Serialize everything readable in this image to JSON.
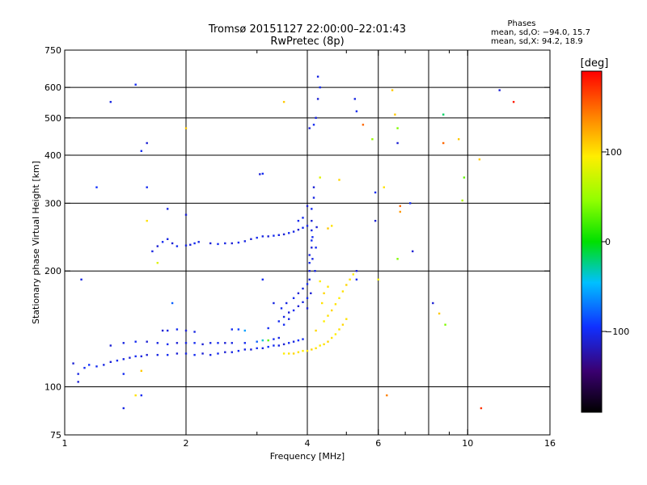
{
  "header": {
    "title": "Tromsø 20151127 22:00:00–22:01:43",
    "subtitle": "RwPretec (8p)"
  },
  "phases": {
    "heading": "Phases",
    "o_line": "mean, sd,O: −94.0, 15.7",
    "x_line": "mean, sd,X:  94.2, 18.9"
  },
  "colorbar": {
    "unit": "[deg]",
    "ticks": [
      {
        "value": 100,
        "label": "100"
      },
      {
        "value": 0,
        "label": "0"
      },
      {
        "value": -100,
        "label": "−100"
      }
    ],
    "range": [
      -190,
      190
    ]
  },
  "chart_data": {
    "type": "scatter",
    "title": "Tromsø 20151127 22:00:00–22:01:43",
    "subtitle": "RwPretec (8p)",
    "xlabel": "Frequency [MHz]",
    "ylabel": "Stationary phase Virtual Height [km]",
    "x_scale": "log",
    "y_scale": "log",
    "xlim": [
      1,
      16
    ],
    "ylim": [
      75,
      750
    ],
    "x_ticks": [
      {
        "value": 1,
        "label": "1"
      },
      {
        "value": 2,
        "label": "2"
      },
      {
        "value": 4,
        "label": "4"
      },
      {
        "value": 6,
        "label": "6"
      },
      {
        "value": 10,
        "label": "10"
      },
      {
        "value": 16,
        "label": "16"
      }
    ],
    "x_minor_ticks": [
      3,
      5,
      7,
      8,
      9
    ],
    "x_grid": [
      2,
      4,
      6,
      8,
      10
    ],
    "y_ticks": [
      {
        "value": 75,
        "label": "75"
      },
      {
        "value": 100,
        "label": "100"
      },
      {
        "value": 200,
        "label": "200"
      },
      {
        "value": 300,
        "label": "300"
      },
      {
        "value": 400,
        "label": "400"
      },
      {
        "value": 500,
        "label": "500"
      },
      {
        "value": 600,
        "label": "600"
      },
      {
        "value": 750,
        "label": "750"
      }
    ],
    "y_grid": [
      100,
      200,
      300,
      400,
      500,
      600
    ],
    "grid": true,
    "color_scale": "phase in degrees",
    "series": [
      {
        "points": [
          [
            1.05,
            115,
            -110
          ],
          [
            1.08,
            108,
            -105
          ],
          [
            1.12,
            112,
            -100
          ],
          [
            1.15,
            114,
            -95
          ],
          [
            1.2,
            113,
            -100
          ],
          [
            1.25,
            114,
            -105
          ],
          [
            1.3,
            116,
            -110
          ],
          [
            1.35,
            117,
            -100
          ],
          [
            1.4,
            118,
            -105
          ],
          [
            1.45,
            119,
            -110
          ],
          [
            1.5,
            120,
            -100
          ],
          [
            1.55,
            120,
            -105
          ],
          [
            1.6,
            121,
            -110
          ],
          [
            1.7,
            121,
            -105
          ],
          [
            1.8,
            121,
            -100
          ],
          [
            1.9,
            122,
            -110
          ],
          [
            2.0,
            122,
            -105
          ],
          [
            2.1,
            121,
            -100
          ],
          [
            2.2,
            122,
            -110
          ],
          [
            2.3,
            121,
            -105
          ],
          [
            2.4,
            122,
            -100
          ],
          [
            2.5,
            123,
            -110
          ],
          [
            2.6,
            123,
            -105
          ],
          [
            2.7,
            124,
            -100
          ],
          [
            2.8,
            125,
            -105
          ],
          [
            2.9,
            125,
            -110
          ],
          [
            3.0,
            126,
            -100
          ],
          [
            3.1,
            126,
            -105
          ],
          [
            3.2,
            127,
            -95
          ],
          [
            3.3,
            128,
            -100
          ],
          [
            3.4,
            128,
            -105
          ],
          [
            3.5,
            129,
            -110
          ],
          [
            3.6,
            130,
            -100
          ],
          [
            3.7,
            131,
            -105
          ],
          [
            3.8,
            132,
            -95
          ],
          [
            3.9,
            133,
            -100
          ]
        ]
      },
      {
        "points": [
          [
            1.3,
            128,
            -110
          ],
          [
            1.4,
            130,
            -105
          ],
          [
            1.5,
            131,
            -100
          ],
          [
            1.6,
            131,
            -110
          ],
          [
            1.7,
            130,
            -105
          ],
          [
            1.8,
            129,
            -100
          ],
          [
            1.9,
            130,
            -110
          ],
          [
            2.0,
            130,
            -105
          ],
          [
            2.1,
            130,
            -100
          ],
          [
            2.2,
            129,
            -110
          ],
          [
            2.3,
            130,
            -105
          ],
          [
            2.4,
            130,
            -100
          ],
          [
            2.5,
            130,
            -110
          ],
          [
            2.6,
            130,
            -105
          ],
          [
            2.8,
            130,
            -100
          ],
          [
            3.0,
            131,
            -80
          ],
          [
            3.1,
            132,
            -40
          ],
          [
            3.2,
            132,
            30
          ],
          [
            3.3,
            133,
            -100
          ],
          [
            3.4,
            134,
            -105
          ]
        ]
      },
      {
        "points": [
          [
            1.75,
            140,
            -110
          ],
          [
            1.8,
            140,
            -105
          ],
          [
            1.9,
            141,
            -100
          ],
          [
            2.0,
            140,
            -110
          ],
          [
            2.1,
            139,
            -105
          ],
          [
            2.6,
            141,
            -100
          ],
          [
            2.7,
            141,
            -90
          ],
          [
            2.8,
            140,
            -60
          ],
          [
            3.2,
            142,
            -100
          ]
        ]
      },
      {
        "points": [
          [
            3.4,
            148,
            -100
          ],
          [
            3.5,
            152,
            -105
          ],
          [
            3.6,
            156,
            -110
          ],
          [
            3.5,
            145,
            -100
          ],
          [
            3.6,
            150,
            -105
          ],
          [
            3.7,
            158,
            -100
          ],
          [
            3.8,
            162,
            -110
          ],
          [
            3.9,
            166,
            -105
          ],
          [
            3.45,
            160,
            -100
          ],
          [
            3.55,
            165,
            -105
          ],
          [
            3.7,
            170,
            -100
          ],
          [
            3.8,
            175,
            -110
          ],
          [
            3.9,
            180,
            -105
          ],
          [
            4.0,
            185,
            -100
          ],
          [
            4.0,
            160,
            -110
          ],
          [
            4.0,
            170,
            -100
          ],
          [
            4.05,
            190,
            -105
          ],
          [
            4.05,
            200,
            -110
          ],
          [
            4.05,
            210,
            -100
          ],
          [
            4.05,
            220,
            -105
          ],
          [
            4.1,
            230,
            -110
          ],
          [
            4.1,
            240,
            -100
          ],
          [
            4.1,
            255,
            -105
          ],
          [
            4.1,
            270,
            -110
          ],
          [
            4.1,
            290,
            -100
          ],
          [
            4.15,
            310,
            -105
          ],
          [
            4.15,
            330,
            -110
          ],
          [
            4.12,
            215,
            -105
          ],
          [
            4.12,
            245,
            -100
          ],
          [
            4.08,
            175,
            -110
          ],
          [
            4.18,
            200,
            -105
          ],
          [
            4.2,
            230,
            -100
          ],
          [
            4.22,
            260,
            -110
          ],
          [
            4.05,
            470,
            -110
          ],
          [
            4.15,
            480,
            -100
          ],
          [
            4.2,
            500,
            -105
          ],
          [
            4.25,
            560,
            -110
          ],
          [
            4.3,
            600,
            -100
          ],
          [
            4.25,
            640,
            -105
          ]
        ]
      },
      {
        "points": [
          [
            1.65,
            225,
            -105
          ],
          [
            1.7,
            232,
            -110
          ],
          [
            1.75,
            238,
            -100
          ],
          [
            1.8,
            242,
            -105
          ],
          [
            1.85,
            236,
            -110
          ],
          [
            1.9,
            232,
            -100
          ],
          [
            2.0,
            233,
            -105
          ],
          [
            2.05,
            234,
            -110
          ],
          [
            2.1,
            236,
            -100
          ],
          [
            2.15,
            238,
            -105
          ],
          [
            2.3,
            236,
            -110
          ],
          [
            2.4,
            235,
            -100
          ],
          [
            2.5,
            236,
            -105
          ],
          [
            2.6,
            236,
            -110
          ],
          [
            2.7,
            237,
            -100
          ],
          [
            2.8,
            239,
            -105
          ],
          [
            2.9,
            242,
            -110
          ],
          [
            3.0,
            244,
            -100
          ],
          [
            3.1,
            246,
            -105
          ],
          [
            3.2,
            246,
            -110
          ],
          [
            3.3,
            247,
            -100
          ],
          [
            3.4,
            248,
            -105
          ],
          [
            3.5,
            249,
            -110
          ],
          [
            3.6,
            251,
            -100
          ],
          [
            3.7,
            253,
            -105
          ],
          [
            3.8,
            256,
            -110
          ],
          [
            3.9,
            259,
            -100
          ],
          [
            4.0,
            262,
            -105
          ],
          [
            3.05,
            357,
            -110
          ],
          [
            3.1,
            358,
            -100
          ]
        ]
      },
      {
        "points": [
          [
            3.5,
            122,
            95
          ],
          [
            3.6,
            122,
            100
          ],
          [
            3.7,
            122,
            105
          ],
          [
            3.8,
            123,
            100
          ],
          [
            3.9,
            124,
            95
          ],
          [
            4.0,
            124,
            100
          ],
          [
            4.1,
            125,
            105
          ],
          [
            4.2,
            126,
            100
          ],
          [
            4.3,
            128,
            95
          ],
          [
            4.4,
            129,
            100
          ],
          [
            4.5,
            131,
            105
          ],
          [
            4.6,
            134,
            100
          ],
          [
            4.7,
            137,
            95
          ],
          [
            4.8,
            141,
            100
          ],
          [
            4.9,
            145,
            105
          ],
          [
            5.0,
            150,
            100
          ],
          [
            4.4,
            148,
            95
          ],
          [
            4.5,
            153,
            100
          ],
          [
            4.6,
            158,
            105
          ],
          [
            4.7,
            164,
            100
          ],
          [
            4.8,
            170,
            95
          ],
          [
            4.9,
            177,
            100
          ],
          [
            5.0,
            184,
            105
          ],
          [
            5.1,
            190,
            100
          ],
          [
            5.2,
            196,
            95
          ],
          [
            4.35,
            165,
            100
          ],
          [
            4.4,
            175,
            105
          ],
          [
            4.5,
            182,
            100
          ],
          [
            4.3,
            188,
            95
          ],
          [
            4.2,
            140,
            105
          ],
          [
            4.5,
            258,
            110
          ],
          [
            4.6,
            262,
            100
          ],
          [
            4.8,
            345,
            105
          ]
        ]
      },
      {
        "points": [
          [
            1.08,
            103,
            -110
          ],
          [
            1.4,
            108,
            -100
          ],
          [
            1.4,
            88,
            -105
          ],
          [
            1.55,
            95,
            -100
          ],
          [
            1.22,
            74,
            -110
          ],
          [
            1.3,
            74,
            -100
          ],
          [
            1.1,
            190,
            -105
          ],
          [
            1.2,
            330,
            -95
          ],
          [
            1.3,
            550,
            -105
          ],
          [
            1.5,
            610,
            -100
          ],
          [
            1.55,
            410,
            -100
          ],
          [
            1.6,
            430,
            -110
          ],
          [
            1.6,
            330,
            -100
          ],
          [
            1.7,
            210,
            80
          ],
          [
            1.6,
            270,
            100
          ],
          [
            1.8,
            290,
            -105
          ],
          [
            2.0,
            280,
            -110
          ],
          [
            1.5,
            95,
            100
          ],
          [
            1.55,
            110,
            110
          ],
          [
            1.85,
            165,
            -80
          ],
          [
            2.0,
            470,
            110
          ],
          [
            3.1,
            190,
            -100
          ],
          [
            3.3,
            165,
            -105
          ],
          [
            3.5,
            550,
            110
          ],
          [
            3.8,
            270,
            -100
          ],
          [
            3.9,
            275,
            -100
          ],
          [
            4.0,
            295,
            -110
          ],
          [
            4.3,
            350,
            80
          ],
          [
            5.3,
            190,
            -100
          ],
          [
            5.3,
            200,
            -110
          ],
          [
            5.25,
            560,
            -105
          ],
          [
            5.3,
            520,
            -100
          ],
          [
            5.5,
            480,
            150
          ],
          [
            5.8,
            440,
            50
          ],
          [
            5.9,
            320,
            -100
          ],
          [
            5.9,
            270,
            -110
          ],
          [
            6.0,
            190,
            90
          ],
          [
            6.2,
            330,
            100
          ],
          [
            6.3,
            95,
            140
          ],
          [
            6.5,
            590,
            110
          ],
          [
            6.6,
            510,
            110
          ],
          [
            6.7,
            470,
            40
          ],
          [
            6.7,
            430,
            -110
          ],
          [
            6.8,
            295,
            150
          ],
          [
            6.8,
            285,
            130
          ],
          [
            6.7,
            215,
            40
          ],
          [
            7.2,
            300,
            -100
          ],
          [
            7.3,
            225,
            -110
          ],
          [
            8.2,
            165,
            -110
          ],
          [
            8.5,
            155,
            110
          ],
          [
            8.8,
            145,
            40
          ],
          [
            8.7,
            510,
            -20
          ],
          [
            8.7,
            430,
            150
          ],
          [
            9.5,
            440,
            110
          ],
          [
            9.8,
            350,
            30
          ],
          [
            9.7,
            305,
            60
          ],
          [
            10.7,
            390,
            110
          ],
          [
            10.8,
            88,
            170
          ],
          [
            12.0,
            590,
            -110
          ],
          [
            13.0,
            550,
            180
          ]
        ]
      }
    ]
  },
  "axes_text": {
    "xlabel": "Frequency [MHz]",
    "ylabel": "Stationary phase Virtual Height [km]"
  }
}
